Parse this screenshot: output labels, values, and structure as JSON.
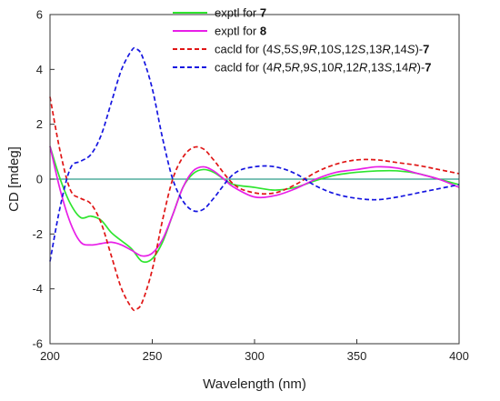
{
  "chart_data": {
    "type": "line",
    "xlabel": "Wavelength (nm)",
    "ylabel": "CD [mdeg]",
    "xlim": [
      200,
      400
    ],
    "ylim": [
      -6,
      6
    ],
    "xticks": [
      200,
      250,
      300,
      350,
      400
    ],
    "yticks": [
      -6,
      -4,
      -2,
      0,
      2,
      4,
      6
    ],
    "grid": false,
    "legend_position": "top-right",
    "zero_line": {
      "y": 0,
      "color": "#2e9d8a"
    },
    "series": [
      {
        "name": "exptl for 7",
        "legend": [
          {
            "t": "exptl for "
          },
          {
            "t": "7",
            "b": true
          }
        ],
        "color": "#2ee52e",
        "dash": "solid",
        "x": [
          200,
          205,
          210,
          215,
          220,
          225,
          230,
          235,
          240,
          245,
          250,
          255,
          260,
          265,
          270,
          275,
          280,
          285,
          290,
          300,
          310,
          320,
          330,
          340,
          350,
          360,
          370,
          380,
          390,
          400
        ],
        "y": [
          1.2,
          0.0,
          -0.9,
          -1.4,
          -1.35,
          -1.5,
          -1.95,
          -2.25,
          -2.55,
          -3.0,
          -2.9,
          -2.3,
          -1.3,
          -0.3,
          0.2,
          0.35,
          0.25,
          0.0,
          -0.2,
          -0.3,
          -0.4,
          -0.3,
          -0.05,
          0.15,
          0.25,
          0.3,
          0.3,
          0.2,
          0.0,
          -0.2
        ]
      },
      {
        "name": "exptl for 8",
        "legend": [
          {
            "t": "exptl for "
          },
          {
            "t": "8",
            "b": true
          }
        ],
        "color": "#e81ee8",
        "dash": "solid",
        "x": [
          200,
          205,
          210,
          215,
          220,
          225,
          230,
          235,
          240,
          245,
          250,
          255,
          260,
          265,
          270,
          275,
          280,
          285,
          290,
          300,
          310,
          320,
          330,
          340,
          350,
          360,
          370,
          380,
          390,
          400
        ],
        "y": [
          1.2,
          -0.4,
          -1.6,
          -2.3,
          -2.4,
          -2.35,
          -2.3,
          -2.4,
          -2.6,
          -2.8,
          -2.7,
          -2.2,
          -1.3,
          -0.3,
          0.3,
          0.45,
          0.3,
          0.0,
          -0.3,
          -0.65,
          -0.6,
          -0.35,
          0.0,
          0.25,
          0.35,
          0.45,
          0.4,
          0.2,
          0.0,
          -0.3
        ]
      },
      {
        "name": "cacld for (4S,5S,9R,10S,12S,13R,14S)-7",
        "legend": [
          {
            "t": "cacld for (4"
          },
          {
            "t": "S",
            "i": true
          },
          {
            "t": ",5"
          },
          {
            "t": "S",
            "i": true
          },
          {
            "t": ",9"
          },
          {
            "t": "R",
            "i": true
          },
          {
            "t": ",10"
          },
          {
            "t": "S",
            "i": true
          },
          {
            "t": ",12"
          },
          {
            "t": "S",
            "i": true
          },
          {
            "t": ",13"
          },
          {
            "t": "R",
            "i": true
          },
          {
            "t": ",14"
          },
          {
            "t": "S",
            "i": true
          },
          {
            "t": ")-"
          },
          {
            "t": "7",
            "b": true
          }
        ],
        "color": "#e01515",
        "dash": "5 3",
        "x": [
          200,
          205,
          210,
          215,
          220,
          225,
          230,
          235,
          240,
          242,
          245,
          250,
          255,
          260,
          265,
          270,
          275,
          280,
          290,
          300,
          310,
          320,
          330,
          340,
          350,
          360,
          370,
          380,
          390,
          400
        ],
        "y": [
          3.0,
          1.0,
          -0.4,
          -0.7,
          -0.9,
          -1.6,
          -2.8,
          -4.0,
          -4.7,
          -4.75,
          -4.5,
          -3.3,
          -1.5,
          0.0,
          0.8,
          1.15,
          1.1,
          0.7,
          -0.2,
          -0.5,
          -0.5,
          -0.2,
          0.25,
          0.55,
          0.7,
          0.7,
          0.6,
          0.5,
          0.35,
          0.2
        ]
      },
      {
        "name": "cacld for (4R,5R,9S,10R,12R,13S,14R)-7",
        "legend": [
          {
            "t": "cacld for (4"
          },
          {
            "t": "R",
            "i": true
          },
          {
            "t": ",5"
          },
          {
            "t": "R",
            "i": true
          },
          {
            "t": ",9"
          },
          {
            "t": "S",
            "i": true
          },
          {
            "t": ",10"
          },
          {
            "t": "R",
            "i": true
          },
          {
            "t": ",12"
          },
          {
            "t": "R",
            "i": true
          },
          {
            "t": ",13"
          },
          {
            "t": "S",
            "i": true
          },
          {
            "t": ",14"
          },
          {
            "t": "R",
            "i": true
          },
          {
            "t": ")-"
          },
          {
            "t": "7",
            "b": true
          }
        ],
        "color": "#1515e0",
        "dash": "5 3",
        "x": [
          200,
          205,
          210,
          215,
          220,
          225,
          230,
          235,
          240,
          242,
          245,
          250,
          255,
          260,
          265,
          270,
          275,
          280,
          290,
          300,
          310,
          320,
          330,
          340,
          350,
          360,
          370,
          380,
          390,
          400
        ],
        "y": [
          -3.0,
          -1.0,
          0.4,
          0.65,
          0.9,
          1.6,
          2.8,
          4.0,
          4.7,
          4.75,
          4.5,
          3.3,
          1.5,
          0.0,
          -0.8,
          -1.15,
          -1.1,
          -0.7,
          0.2,
          0.45,
          0.45,
          0.2,
          -0.25,
          -0.55,
          -0.7,
          -0.75,
          -0.65,
          -0.5,
          -0.35,
          -0.2
        ]
      }
    ]
  }
}
